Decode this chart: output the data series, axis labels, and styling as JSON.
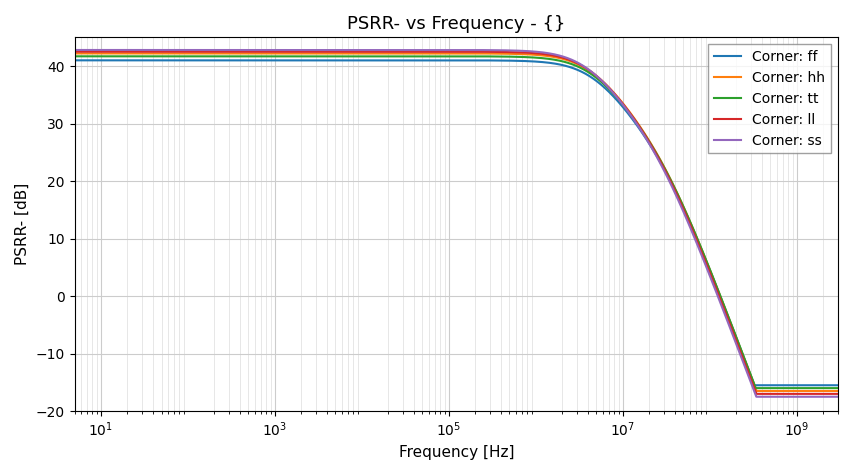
{
  "title": "PSRR- vs Frequency - {}",
  "xlabel": "Frequency [Hz]",
  "ylabel": "PSRR- [dB]",
  "xmin": 5,
  "xmax": 3000000000.0,
  "ylim": [
    -20,
    45
  ],
  "yticks": [
    -20,
    -10,
    0,
    10,
    20,
    30,
    40
  ],
  "corners": [
    {
      "label": "Corner: ff",
      "color": "#1f77b4",
      "dc": 41.0,
      "pole": 4500000.0,
      "n": 1.0,
      "zero": 200000000.0,
      "floor": -15.5
    },
    {
      "label": "Corner: hh",
      "color": "#ff7f0e",
      "dc": 42.2,
      "pole": 4200000.0,
      "n": 1.0,
      "zero": 180000000.0,
      "floor": -16.5
    },
    {
      "label": "Corner: tt",
      "color": "#2ca02c",
      "dc": 41.7,
      "pole": 4350000.0,
      "n": 1.0,
      "zero": 190000000.0,
      "floor": -16.0
    },
    {
      "label": "Corner: ll",
      "color": "#d62728",
      "dc": 42.5,
      "pole": 4000000.0,
      "n": 1.0,
      "zero": 170000000.0,
      "floor": -17.0
    },
    {
      "label": "Corner: ss",
      "color": "#9467bd",
      "dc": 42.8,
      "pole": 3800000.0,
      "n": 1.0,
      "zero": 160000000.0,
      "floor": -17.5
    }
  ],
  "title_fontsize": 13,
  "label_fontsize": 11,
  "tick_fontsize": 10,
  "legend_fontsize": 10,
  "linewidth": 1.5
}
